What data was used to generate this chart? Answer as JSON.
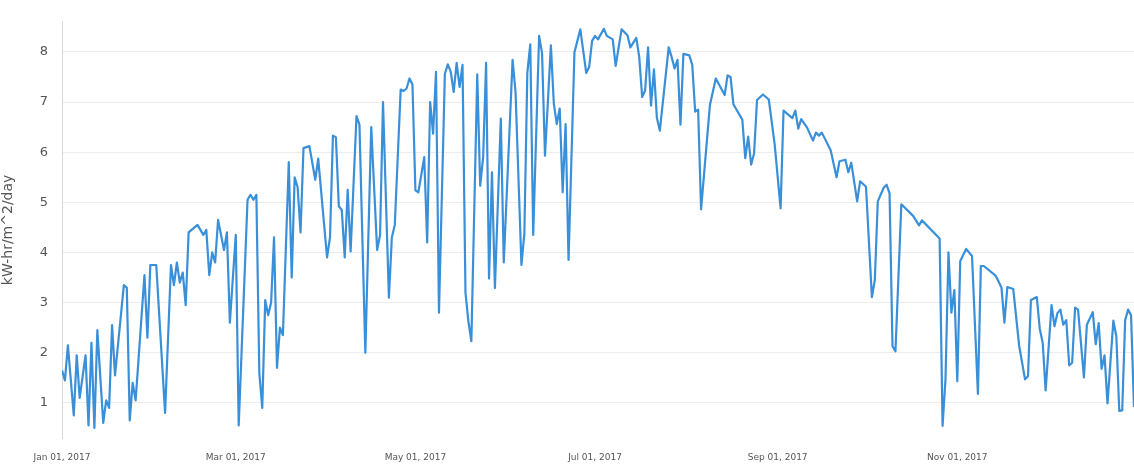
{
  "chart_data": {
    "type": "line",
    "ylabel": "kW-hr/m^2/day",
    "grid": "y",
    "legend": false,
    "marker": "none",
    "line_style": "solid",
    "xlim": [
      "2017-01-01",
      "2017-12-31"
    ],
    "ylim": [
      0.3,
      8.6
    ],
    "yticks": [
      1,
      2,
      3,
      4,
      5,
      6,
      7,
      8
    ],
    "xticks": [
      {
        "value": "2017-01-01",
        "label": "Jan 01, 2017"
      },
      {
        "value": "2017-03-01",
        "label": "Mar 01, 2017"
      },
      {
        "value": "2017-05-01",
        "label": "May 01, 2017"
      },
      {
        "value": "2017-07-01",
        "label": "Jul 01, 2017"
      },
      {
        "value": "2017-09-01",
        "label": "Sep 01, 2017"
      },
      {
        "value": "2017-11-01",
        "label": "Nov 01, 2017"
      }
    ],
    "series": [
      {
        "color": "#3a8fd9",
        "x": [
          "2017-01-01",
          "2017-01-02",
          "2017-01-03",
          "2017-01-05",
          "2017-01-06",
          "2017-01-07",
          "2017-01-09",
          "2017-01-10",
          "2017-01-11",
          "2017-01-12",
          "2017-01-13",
          "2017-01-15",
          "2017-01-16",
          "2017-01-17",
          "2017-01-18",
          "2017-01-19",
          "2017-01-22",
          "2017-01-23",
          "2017-01-24",
          "2017-01-25",
          "2017-01-26",
          "2017-01-29",
          "2017-01-30",
          "2017-01-31",
          "2017-02-02",
          "2017-02-05",
          "2017-02-07",
          "2017-02-08",
          "2017-02-09",
          "2017-02-10",
          "2017-02-11",
          "2017-02-12",
          "2017-02-13",
          "2017-02-16",
          "2017-02-18",
          "2017-02-19",
          "2017-02-20",
          "2017-02-21",
          "2017-02-22",
          "2017-02-23",
          "2017-02-25",
          "2017-02-26",
          "2017-02-27",
          "2017-03-01",
          "2017-03-02",
          "2017-03-05",
          "2017-03-06",
          "2017-03-07",
          "2017-03-08",
          "2017-03-09",
          "2017-03-10",
          "2017-03-11",
          "2017-03-12",
          "2017-03-13",
          "2017-03-14",
          "2017-03-15",
          "2017-03-16",
          "2017-03-17",
          "2017-03-19",
          "2017-03-20",
          "2017-03-21",
          "2017-03-22",
          "2017-03-23",
          "2017-03-24",
          "2017-03-26",
          "2017-03-28",
          "2017-03-29",
          "2017-04-01",
          "2017-04-02",
          "2017-04-03",
          "2017-04-04",
          "2017-04-05",
          "2017-04-06",
          "2017-04-07",
          "2017-04-08",
          "2017-04-09",
          "2017-04-11",
          "2017-04-12",
          "2017-04-14",
          "2017-04-16",
          "2017-04-18",
          "2017-04-19",
          "2017-04-20",
          "2017-04-22",
          "2017-04-23",
          "2017-04-24",
          "2017-04-26",
          "2017-04-27",
          "2017-04-28",
          "2017-04-29",
          "2017-04-30",
          "2017-05-01",
          "2017-05-02",
          "2017-05-04",
          "2017-05-05",
          "2017-05-06",
          "2017-05-07",
          "2017-05-08",
          "2017-05-09",
          "2017-05-11",
          "2017-05-12",
          "2017-05-13",
          "2017-05-14",
          "2017-05-15",
          "2017-05-16",
          "2017-05-17",
          "2017-05-18",
          "2017-05-19",
          "2017-05-20",
          "2017-05-22",
          "2017-05-23",
          "2017-05-24",
          "2017-05-25",
          "2017-05-26",
          "2017-05-27",
          "2017-05-28",
          "2017-05-30",
          "2017-05-31",
          "2017-06-03",
          "2017-06-04",
          "2017-06-06",
          "2017-06-07",
          "2017-06-08",
          "2017-06-09",
          "2017-06-10",
          "2017-06-12",
          "2017-06-13",
          "2017-06-14",
          "2017-06-16",
          "2017-06-17",
          "2017-06-18",
          "2017-06-19",
          "2017-06-20",
          "2017-06-21",
          "2017-06-22",
          "2017-06-24",
          "2017-06-26",
          "2017-06-28",
          "2017-06-29",
          "2017-06-30",
          "2017-07-01",
          "2017-07-02",
          "2017-07-04",
          "2017-07-05",
          "2017-07-07",
          "2017-07-08",
          "2017-07-10",
          "2017-07-12",
          "2017-07-13",
          "2017-07-15",
          "2017-07-16",
          "2017-07-17",
          "2017-07-18",
          "2017-07-19",
          "2017-07-20",
          "2017-07-21",
          "2017-07-22",
          "2017-07-23",
          "2017-07-26",
          "2017-07-27",
          "2017-07-28",
          "2017-07-29",
          "2017-07-30",
          "2017-07-31",
          "2017-08-02",
          "2017-08-03",
          "2017-08-04",
          "2017-08-05",
          "2017-08-06",
          "2017-08-09",
          "2017-08-11",
          "2017-08-13",
          "2017-08-14",
          "2017-08-15",
          "2017-08-16",
          "2017-08-17",
          "2017-08-20",
          "2017-08-21",
          "2017-08-22",
          "2017-08-23",
          "2017-08-24",
          "2017-08-25",
          "2017-08-27",
          "2017-08-29",
          "2017-08-31",
          "2017-09-02",
          "2017-09-03",
          "2017-09-06",
          "2017-09-07",
          "2017-09-08",
          "2017-09-09",
          "2017-09-11",
          "2017-09-13",
          "2017-09-14",
          "2017-09-15",
          "2017-09-16",
          "2017-09-19",
          "2017-09-21",
          "2017-09-22",
          "2017-09-24",
          "2017-09-25",
          "2017-09-26",
          "2017-09-28",
          "2017-09-29",
          "2017-10-01",
          "2017-10-03",
          "2017-10-04",
          "2017-10-05",
          "2017-10-07",
          "2017-10-08",
          "2017-10-09",
          "2017-10-10",
          "2017-10-11",
          "2017-10-13",
          "2017-10-17",
          "2017-10-19",
          "2017-10-20",
          "2017-10-26",
          "2017-10-27",
          "2017-10-28",
          "2017-10-29",
          "2017-10-30",
          "2017-10-31",
          "2017-11-01",
          "2017-11-02",
          "2017-11-04",
          "2017-11-06",
          "2017-11-08",
          "2017-11-09",
          "2017-11-10",
          "2017-11-14",
          "2017-11-16",
          "2017-11-17",
          "2017-11-18",
          "2017-11-20",
          "2017-11-22",
          "2017-11-24",
          "2017-11-25",
          "2017-11-26",
          "2017-11-28",
          "2017-11-29",
          "2017-11-30",
          "2017-12-01",
          "2017-12-03",
          "2017-12-04",
          "2017-12-05",
          "2017-12-06",
          "2017-12-07",
          "2017-12-08",
          "2017-12-09",
          "2017-12-10",
          "2017-12-11",
          "2017-12-12",
          "2017-12-14",
          "2017-12-15",
          "2017-12-17",
          "2017-12-18",
          "2017-12-19",
          "2017-12-20",
          "2017-12-21",
          "2017-12-22",
          "2017-12-24",
          "2017-12-25",
          "2017-12-26",
          "2017-12-27",
          "2017-12-28",
          "2017-12-29",
          "2017-12-30",
          "2017-12-31"
        ],
        "values": [
          1.65,
          1.45,
          2.15,
          0.75,
          1.95,
          1.1,
          1.95,
          0.55,
          2.2,
          0.5,
          2.45,
          0.6,
          1.05,
          0.9,
          2.55,
          1.55,
          3.35,
          3.3,
          0.65,
          1.4,
          1.05,
          3.55,
          2.3,
          3.75,
          3.75,
          0.8,
          3.75,
          3.35,
          3.8,
          3.4,
          3.6,
          2.95,
          4.4,
          4.55,
          4.35,
          4.45,
          3.55,
          4.0,
          3.8,
          4.65,
          4.05,
          4.4,
          2.6,
          4.35,
          0.55,
          5.05,
          5.15,
          5.05,
          5.15,
          1.6,
          0.9,
          3.05,
          2.75,
          3.0,
          4.3,
          1.7,
          2.5,
          2.35,
          5.8,
          3.5,
          5.5,
          5.3,
          4.4,
          6.08,
          6.12,
          5.45,
          5.87,
          3.9,
          4.3,
          6.33,
          6.3,
          4.92,
          4.85,
          3.9,
          5.25,
          4.02,
          6.72,
          6.55,
          2.0,
          6.5,
          4.05,
          4.35,
          7.0,
          3.1,
          4.3,
          4.55,
          7.25,
          7.22,
          7.27,
          7.47,
          7.35,
          5.24,
          5.2,
          5.9,
          4.2,
          7.0,
          6.37,
          7.6,
          2.8,
          7.56,
          7.75,
          7.6,
          7.2,
          7.78,
          7.3,
          7.74,
          3.2,
          2.62,
          2.23,
          7.55,
          5.33,
          5.9,
          7.78,
          3.48,
          5.6,
          3.29,
          6.67,
          3.8,
          7.84,
          7.2,
          3.75,
          4.38,
          7.58,
          8.15,
          4.35,
          8.32,
          7.98,
          5.93,
          8.13,
          6.97,
          6.56,
          6.87,
          5.2,
          6.56,
          3.85,
          7.99,
          8.45,
          7.58,
          7.7,
          8.22,
          8.32,
          8.25,
          8.46,
          8.32,
          8.25,
          7.72,
          8.45,
          8.33,
          8.09,
          8.28,
          7.9,
          7.1,
          7.23,
          8.09,
          6.93,
          7.65,
          6.68,
          6.43,
          8.09,
          7.9,
          7.67,
          7.84,
          6.55,
          7.96,
          7.93,
          7.74,
          6.81,
          6.85,
          4.86,
          6.94,
          7.47,
          7.25,
          7.14,
          7.53,
          7.5,
          6.95,
          6.65,
          5.88,
          6.31,
          5.75,
          5.98,
          7.04,
          7.15,
          7.05,
          6.15,
          4.88,
          6.83,
          6.68,
          6.83,
          6.47,
          6.66,
          6.49,
          6.23,
          6.39,
          6.33,
          6.39,
          6.04,
          5.5,
          5.82,
          5.85,
          5.6,
          5.79,
          5.02,
          5.42,
          5.31,
          3.11,
          3.45,
          5.02,
          5.29,
          5.35,
          5.18,
          2.13,
          2.03,
          4.96,
          4.73,
          4.54,
          4.64,
          4.28,
          0.54,
          1.48,
          4.0,
          2.8,
          3.25,
          1.43,
          3.83,
          4.07,
          3.93,
          1.18,
          3.73,
          3.73,
          3.54,
          3.3,
          2.6,
          3.31,
          3.27,
          2.14,
          1.47,
          1.53,
          3.05,
          3.11,
          2.48,
          2.2,
          1.25,
          2.95,
          2.53,
          2.79,
          2.86,
          2.56,
          2.65,
          1.75,
          1.8,
          2.9,
          2.86,
          1.51,
          2.56,
          2.81,
          2.17,
          2.59,
          1.68,
          1.95,
          0.99,
          2.64,
          2.33,
          0.84,
          0.85,
          2.65,
          2.86,
          2.75,
          0.92
        ]
      }
    ]
  }
}
